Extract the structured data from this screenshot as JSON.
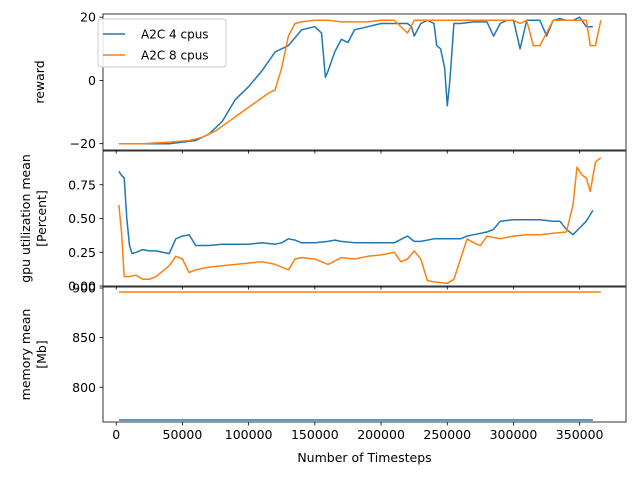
{
  "chart_data": [
    {
      "type": "line",
      "panel": "reward",
      "ylabel": "reward",
      "xlabel": "",
      "ylim": [
        -22,
        21
      ],
      "yticks": [
        -20,
        0,
        20
      ],
      "xlim": [
        -10000,
        385000
      ],
      "legend": {
        "placement": "upper left",
        "entries": [
          "A2C 4 cpus",
          "A2C 8 cpus"
        ]
      },
      "series": [
        {
          "name": "A2C 4 cpus",
          "color": "#1f77b4",
          "x": [
            2000,
            20000,
            40000,
            50000,
            60000,
            70000,
            80000,
            90000,
            100000,
            110000,
            120000,
            125000,
            130000,
            140000,
            150000,
            155000,
            158000,
            160000,
            165000,
            170000,
            175000,
            180000,
            190000,
            200000,
            210000,
            220000,
            223000,
            225000,
            230000,
            235000,
            240000,
            242000,
            245000,
            248000,
            250000,
            252000,
            255000,
            260000,
            270000,
            280000,
            285000,
            290000,
            295000,
            300000,
            305000,
            310000,
            315000,
            320000,
            325000,
            330000,
            335000,
            340000,
            345000,
            350000,
            355000,
            360000
          ],
          "y": [
            -20,
            -20,
            -20,
            -19.5,
            -19,
            -17,
            -13,
            -6,
            -2,
            3,
            9,
            10,
            11,
            16,
            17,
            15,
            1,
            3,
            9,
            13,
            12,
            16,
            17,
            18,
            18,
            18,
            17,
            14,
            18,
            19,
            18,
            11,
            10,
            4,
            -8,
            0,
            18,
            18,
            18.5,
            18.5,
            14,
            18,
            19,
            19,
            10,
            19,
            19,
            19,
            14,
            19,
            19.5,
            19,
            19,
            20,
            17,
            17
          ]
        },
        {
          "name": "A2C 8 cpus",
          "color": "#ff7f0e",
          "x": [
            2000,
            20000,
            40000,
            55000,
            65000,
            75000,
            85000,
            95000,
            105000,
            115000,
            120000,
            125000,
            130000,
            135000,
            140000,
            150000,
            160000,
            170000,
            180000,
            190000,
            200000,
            210000,
            215000,
            220000,
            225000,
            230000,
            240000,
            250000,
            260000,
            270000,
            280000,
            290000,
            300000,
            305000,
            310000,
            315000,
            320000,
            330000,
            340000,
            350000,
            355000,
            358000,
            362000,
            366000
          ],
          "y": [
            -20,
            -20,
            -19.5,
            -19,
            -18,
            -16,
            -13,
            -10,
            -7,
            -4,
            -3,
            4,
            14,
            18,
            18.5,
            19,
            19,
            18.5,
            18.5,
            18.5,
            19,
            19,
            17,
            15,
            19,
            19,
            19,
            19,
            19,
            19,
            19,
            19,
            19,
            18,
            19,
            11,
            11,
            19,
            19,
            19,
            19,
            11,
            11,
            19
          ]
        }
      ]
    },
    {
      "type": "line",
      "panel": "gpu",
      "ylabel": "gpu utilization mean\n[Percent]",
      "xlabel": "",
      "ylim": [
        0,
        1.0
      ],
      "yticks": [
        0.0,
        0.25,
        0.5,
        0.75
      ],
      "xlim": [
        -10000,
        385000
      ],
      "series": [
        {
          "name": "A2C 4 cpus",
          "color": "#1f77b4",
          "x": [
            2000,
            4000,
            6000,
            8000,
            10000,
            12000,
            15000,
            20000,
            25000,
            30000,
            40000,
            45000,
            50000,
            55000,
            60000,
            70000,
            80000,
            90000,
            100000,
            110000,
            120000,
            125000,
            130000,
            135000,
            140000,
            150000,
            160000,
            165000,
            170000,
            180000,
            190000,
            200000,
            210000,
            220000,
            225000,
            230000,
            240000,
            250000,
            260000,
            265000,
            270000,
            280000,
            285000,
            290000,
            300000,
            310000,
            320000,
            330000,
            335000,
            340000,
            345000,
            350000,
            355000,
            360000
          ],
          "y": [
            0.85,
            0.82,
            0.8,
            0.5,
            0.3,
            0.24,
            0.25,
            0.27,
            0.26,
            0.26,
            0.24,
            0.35,
            0.37,
            0.38,
            0.3,
            0.3,
            0.31,
            0.31,
            0.31,
            0.32,
            0.31,
            0.32,
            0.35,
            0.34,
            0.32,
            0.32,
            0.33,
            0.34,
            0.33,
            0.32,
            0.32,
            0.32,
            0.32,
            0.37,
            0.33,
            0.33,
            0.35,
            0.35,
            0.35,
            0.37,
            0.38,
            0.4,
            0.42,
            0.48,
            0.49,
            0.49,
            0.49,
            0.48,
            0.48,
            0.42,
            0.38,
            0.43,
            0.48,
            0.56
          ]
        },
        {
          "name": "A2C 8 cpus",
          "color": "#ff7f0e",
          "x": [
            2000,
            4000,
            6000,
            10000,
            15000,
            20000,
            25000,
            30000,
            40000,
            45000,
            50000,
            55000,
            60000,
            70000,
            80000,
            90000,
            100000,
            110000,
            120000,
            130000,
            135000,
            140000,
            150000,
            160000,
            170000,
            180000,
            190000,
            200000,
            210000,
            215000,
            220000,
            225000,
            230000,
            235000,
            240000,
            250000,
            255000,
            260000,
            265000,
            270000,
            275000,
            280000,
            290000,
            300000,
            310000,
            320000,
            330000,
            340000,
            345000,
            348000,
            352000,
            355000,
            358000,
            362000,
            366000
          ],
          "y": [
            0.6,
            0.4,
            0.07,
            0.07,
            0.08,
            0.05,
            0.05,
            0.07,
            0.15,
            0.22,
            0.2,
            0.1,
            0.12,
            0.14,
            0.15,
            0.16,
            0.17,
            0.18,
            0.16,
            0.12,
            0.2,
            0.21,
            0.2,
            0.16,
            0.21,
            0.2,
            0.22,
            0.23,
            0.25,
            0.18,
            0.2,
            0.26,
            0.2,
            0.04,
            0.03,
            0.02,
            0.05,
            0.2,
            0.35,
            0.32,
            0.3,
            0.37,
            0.35,
            0.37,
            0.38,
            0.38,
            0.39,
            0.4,
            0.6,
            0.88,
            0.82,
            0.8,
            0.7,
            0.92,
            0.95
          ]
        }
      ]
    },
    {
      "type": "line",
      "panel": "memory",
      "ylabel": "memory mean\n[Mb]",
      "xlabel": "Number of Timesteps",
      "ylim": [
        765,
        901
      ],
      "yticks": [
        800,
        850,
        900
      ],
      "xlim": [
        -10000,
        385000
      ],
      "xticks": [
        0,
        50000,
        100000,
        150000,
        200000,
        250000,
        300000,
        350000
      ],
      "series": [
        {
          "name": "A2C 4 cpus",
          "color": "#1f77b4",
          "x": [
            2000,
            360000
          ],
          "y": [
            767,
            767
          ]
        },
        {
          "name": "A2C 8 cpus",
          "color": "#ff7f0e",
          "x": [
            2000,
            366000
          ],
          "y": [
            896,
            896
          ]
        }
      ]
    }
  ]
}
